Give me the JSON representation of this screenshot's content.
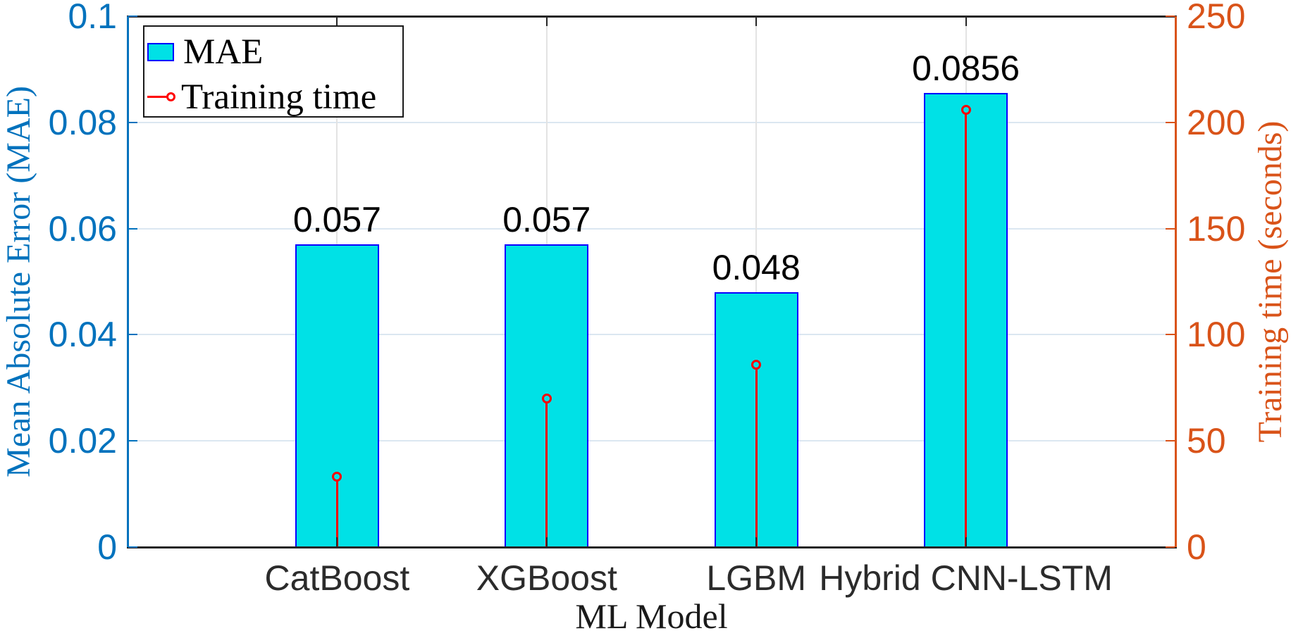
{
  "chart_data": {
    "type": "bar",
    "categories": [
      "CatBoost",
      "XGBoost",
      "LGBM",
      "Hybrid CNN-LSTM"
    ],
    "series": [
      {
        "name": "MAE",
        "plot": "bar",
        "axis": "left",
        "values": [
          0.057,
          0.057,
          0.048,
          0.0856
        ],
        "value_labels": [
          "0.057",
          "0.057",
          "0.048",
          "0.0856"
        ],
        "fill": "#00e1e6",
        "edge": "#0000ff"
      },
      {
        "name": "Training time",
        "plot": "stem",
        "axis": "right",
        "values": [
          33,
          70,
          86,
          206
        ],
        "color": "#ff0000"
      }
    ],
    "xlabel": "ML Model",
    "left_axis": {
      "label": "Mean Absolute Error (MAE)",
      "min": 0,
      "max": 0.1,
      "tick_values": [
        0,
        0.02,
        0.04,
        0.06,
        0.08,
        0.1
      ],
      "tick_labels": [
        "0",
        "0.02",
        "0.04",
        "0.06",
        "0.08",
        "0.1"
      ],
      "color": "#0072bd"
    },
    "right_axis": {
      "label": "Training time (seconds)",
      "min": 0,
      "max": 250,
      "tick_values": [
        0,
        50,
        100,
        150,
        200,
        250
      ],
      "tick_labels": [
        "0",
        "50",
        "100",
        "150",
        "200",
        "250"
      ],
      "color": "#d95319"
    },
    "grid": "on",
    "legend": {
      "position": "top-left",
      "entries": [
        {
          "label": "MAE",
          "marker": "bar-swatch"
        },
        {
          "label": "Training time",
          "marker": "stem-marker"
        }
      ]
    },
    "style": {
      "background": "#ffffff",
      "frame_color": "#262626",
      "grid_h_color": "#dbe7f1",
      "grid_v_color": "#e3e3e3",
      "category_label_color": "#2b2b2b",
      "xlabel_color": "#1a1a1a",
      "legend_border_color": "#1a1a1a"
    }
  }
}
